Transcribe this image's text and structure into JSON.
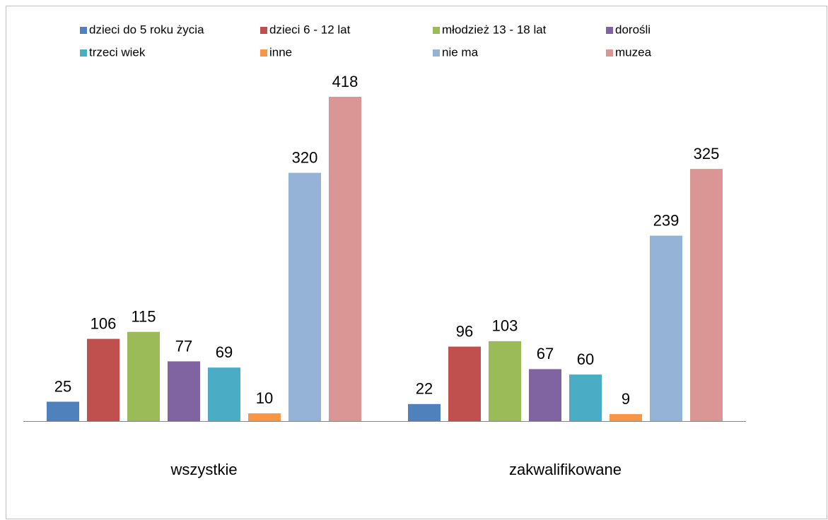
{
  "chart_data": {
    "type": "bar",
    "categories": [
      "wszystkie",
      "zakwalifikowane"
    ],
    "series": [
      {
        "name": "dzieci do 5 roku życia",
        "color": "#4f81bd",
        "values": [
          25,
          22
        ]
      },
      {
        "name": "dzieci 6 - 12 lat",
        "color": "#c0504d",
        "values": [
          106,
          96
        ]
      },
      {
        "name": "młodzież 13 - 18 lat",
        "color": "#9bbb59",
        "values": [
          115,
          103
        ]
      },
      {
        "name": "dorośli",
        "color": "#8064a2",
        "values": [
          77,
          67
        ]
      },
      {
        "name": "trzeci wiek",
        "color": "#4bacc6",
        "values": [
          69,
          60
        ]
      },
      {
        "name": "inne",
        "color": "#f79646",
        "values": [
          10,
          9
        ]
      },
      {
        "name": "nie ma",
        "color": "#95b3d7",
        "values": [
          320,
          239
        ]
      },
      {
        "name": "muzea",
        "color": "#d99694",
        "values": [
          418,
          325
        ]
      }
    ],
    "legend": "top"
  }
}
